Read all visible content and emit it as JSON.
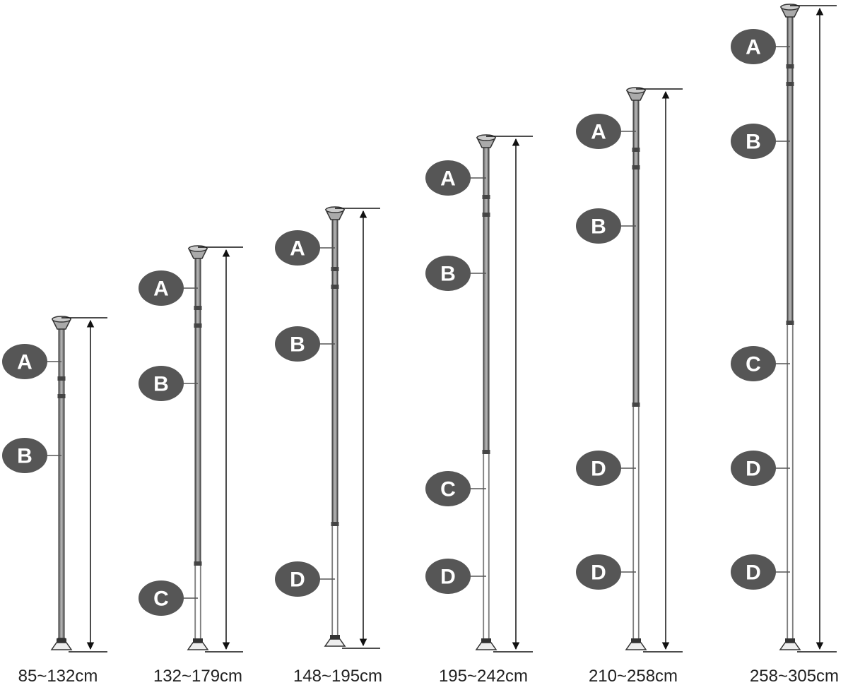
{
  "poles": [
    {
      "labels": [
        "A",
        "B"
      ],
      "range": "85~132cm"
    },
    {
      "labels": [
        "A",
        "B",
        "C"
      ],
      "range": "132~179cm"
    },
    {
      "labels": [
        "A",
        "B",
        "D"
      ],
      "range": "148~195cm"
    },
    {
      "labels": [
        "A",
        "B",
        "C",
        "D"
      ],
      "range": "195~242cm"
    },
    {
      "labels": [
        "A",
        "B",
        "D",
        "D"
      ],
      "range": "210~258cm"
    },
    {
      "labels": [
        "A",
        "B",
        "C",
        "D",
        "D"
      ],
      "range": "258~305cm"
    }
  ]
}
